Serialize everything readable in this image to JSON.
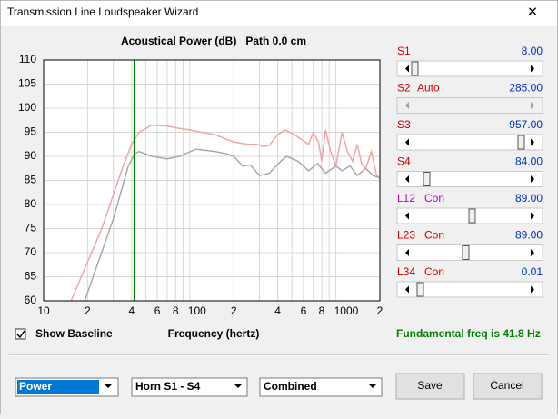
{
  "window": {
    "title": "Transmission Line Loudspeaker Wizard",
    "close": "✕"
  },
  "chart_data": {
    "type": "line",
    "title": "Acoustical Power (dB)   Path 0.0 cm",
    "xlabel": "Frequency (hertz)",
    "log_x": true,
    "grid": true,
    "xlim": [
      10,
      2000
    ],
    "ylim": [
      60,
      110
    ],
    "yticks": [
      60,
      65,
      70,
      75,
      80,
      85,
      90,
      95,
      100,
      105,
      110
    ],
    "xticks": [
      10,
      {
        "value": 20,
        "label": "2"
      },
      {
        "value": 40,
        "label": "4"
      },
      {
        "value": 60,
        "label": "6"
      },
      {
        "value": 80,
        "label": "8"
      },
      100,
      {
        "value": 200,
        "label": "2"
      },
      {
        "value": 400,
        "label": "4"
      },
      {
        "value": 600,
        "label": "6"
      },
      {
        "value": 800,
        "label": "8"
      },
      1000,
      {
        "value": 2000,
        "label": "2"
      }
    ],
    "xminorticks": [
      30,
      50,
      70,
      90,
      300,
      500,
      700,
      900
    ],
    "marker_x": 41.8,
    "marker_color": "#008000",
    "series": [
      {
        "color": "#f4a4a4",
        "x": [
          15.4,
          25,
          35,
          40,
          45,
          55,
          70,
          85,
          100,
          120,
          150,
          180,
          200,
          250,
          290,
          320,
          350,
          400,
          450,
          520,
          580,
          650,
          700,
          760,
          800,
          850,
          920,
          1000,
          1100,
          1200,
          1300,
          1400,
          1500,
          1600,
          1750,
          1900,
          2000
        ],
        "values": [
          60,
          75,
          88,
          92.5,
          95,
          96.5,
          96.3,
          95.8,
          95.5,
          95,
          94.5,
          93.5,
          93,
          92.5,
          92.5,
          92,
          92.3,
          94.5,
          95.5,
          94.5,
          93.5,
          92.5,
          95,
          93,
          89,
          95.5,
          91,
          88,
          95,
          91,
          89,
          92.5,
          88.5,
          87.5,
          91,
          86,
          85.5
        ]
      },
      {
        "color": "#a8a8a8",
        "x": [
          19.1,
          30,
          38,
          42,
          45,
          55,
          70,
          85,
          110,
          150,
          180,
          200,
          230,
          260,
          300,
          350,
          420,
          460,
          550,
          650,
          750,
          850,
          1000,
          1100,
          1250,
          1400,
          1600,
          1800,
          2000
        ],
        "values": [
          60,
          77,
          88,
          90.5,
          91,
          90,
          89.5,
          90,
          91.5,
          91,
          90.5,
          90,
          88,
          88.2,
          86,
          86.5,
          89,
          90,
          89,
          87,
          88.5,
          86.5,
          88,
          87,
          88,
          86,
          87.5,
          86,
          85.5
        ]
      }
    ]
  },
  "sliders": [
    {
      "label": "S1",
      "value": "8.00"
    },
    {
      "label": "S2",
      "mode": "Auto",
      "value": "285.00"
    },
    {
      "label": "S3",
      "value": "957.00"
    },
    {
      "label": "S4",
      "value": "84.00"
    },
    {
      "label": "L12",
      "mode": "Con",
      "value": "89.00"
    },
    {
      "label": "L23",
      "mode": "Con",
      "value": "89.00"
    },
    {
      "label": "L34",
      "mode": "Con",
      "value": "0.01"
    }
  ],
  "controls": {
    "checkbox": "Show Baseline",
    "fundamental": "Fundamental freq is 41.8 Hz",
    "combo1": "Power",
    "combo2": "Horn S1 - S4",
    "combo3": "Combined",
    "save": "Save",
    "cancel": "Cancel"
  }
}
